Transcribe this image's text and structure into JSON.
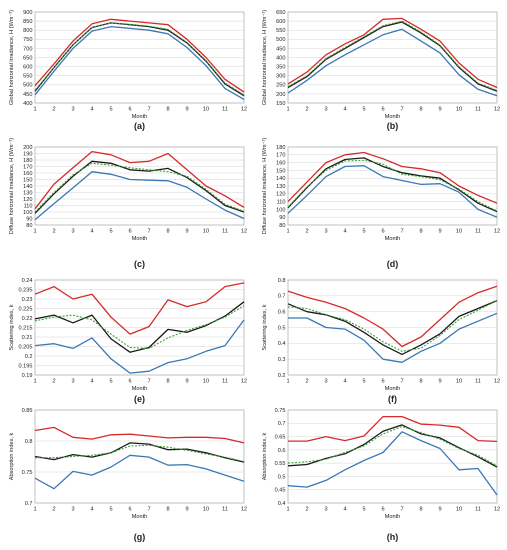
{
  "colors": {
    "red": "#d62a2a",
    "black": "#1a1a1a",
    "blue": "#3a78b5",
    "green": "#3aa03a",
    "grid": "#d6d6d6",
    "frame": "#9a9a9a"
  },
  "chart_data": [
    {
      "type": "line",
      "panel_label": "(a)",
      "xlabel": "Month",
      "ylabel": "Global horizontal irradiance, H (Wm⁻²)",
      "x": [
        1,
        2,
        3,
        4,
        5,
        6,
        7,
        8,
        9,
        10,
        11,
        12
      ],
      "xlim": [
        1,
        12
      ],
      "ylim": [
        400,
        900
      ],
      "yticks": [
        400,
        450,
        500,
        550,
        600,
        650,
        700,
        750,
        800,
        850,
        900
      ],
      "series": [
        {
          "color": "red",
          "dashed": false,
          "values": [
            495,
            615,
            740,
            835,
            860,
            850,
            840,
            830,
            750,
            650,
            530,
            460
          ]
        },
        {
          "color": "black",
          "dashed": false,
          "values": [
            465,
            595,
            720,
            815,
            840,
            830,
            820,
            800,
            730,
            630,
            505,
            440
          ]
        },
        {
          "color": "green",
          "dashed": true,
          "values": [
            470,
            595,
            720,
            815,
            840,
            832,
            822,
            805,
            733,
            633,
            510,
            445
          ]
        },
        {
          "color": "blue",
          "dashed": false,
          "values": [
            445,
            575,
            700,
            795,
            820,
            810,
            800,
            780,
            705,
            605,
            480,
            420
          ]
        }
      ]
    },
    {
      "type": "line",
      "panel_label": "(b)",
      "xlabel": "Month",
      "ylabel": "Global horizontal irradiance, H (Wm⁻²)",
      "x": [
        1,
        2,
        3,
        4,
        5,
        6,
        7,
        8,
        9,
        10,
        11,
        12
      ],
      "xlim": [
        1,
        12
      ],
      "ylim": [
        150,
        650
      ],
      "yticks": [
        150,
        200,
        250,
        300,
        350,
        400,
        450,
        500,
        550,
        600,
        650
      ],
      "series": [
        {
          "color": "red",
          "dashed": false,
          "values": [
            255,
            320,
            415,
            475,
            525,
            610,
            615,
            555,
            490,
            370,
            280,
            235
          ]
        },
        {
          "color": "black",
          "dashed": false,
          "values": [
            235,
            295,
            390,
            450,
            510,
            570,
            595,
            535,
            465,
            345,
            255,
            215
          ]
        },
        {
          "color": "green",
          "dashed": true,
          "values": [
            240,
            300,
            395,
            455,
            515,
            575,
            600,
            540,
            468,
            350,
            260,
            220
          ]
        },
        {
          "color": "blue",
          "dashed": false,
          "values": [
            205,
            275,
            355,
            415,
            470,
            525,
            555,
            490,
            425,
            305,
            225,
            190
          ]
        }
      ]
    },
    {
      "type": "line",
      "panel_label": "(c)",
      "xlabel": "Month",
      "ylabel": "Diffuse horizontal irradiance, H (Wm⁻²)",
      "x": [
        1,
        2,
        3,
        4,
        5,
        6,
        7,
        8,
        9,
        10,
        11,
        12
      ],
      "xlim": [
        1,
        12
      ],
      "ylim": [
        80,
        200
      ],
      "yticks": [
        80,
        90,
        100,
        110,
        120,
        130,
        140,
        150,
        160,
        170,
        180,
        190,
        200
      ],
      "series": [
        {
          "color": "red",
          "dashed": false,
          "values": [
            105,
            143,
            168,
            193,
            188,
            176,
            178,
            190,
            165,
            140,
            125,
            107
          ]
        },
        {
          "color": "black",
          "dashed": false,
          "values": [
            98,
            128,
            155,
            178,
            175,
            165,
            163,
            167,
            153,
            133,
            110,
            100
          ]
        },
        {
          "color": "green",
          "dashed": true,
          "values": [
            100,
            130,
            157,
            175,
            172,
            168,
            165,
            162,
            155,
            135,
            112,
            101
          ]
        },
        {
          "color": "blue",
          "dashed": false,
          "values": [
            88,
            113,
            137,
            162,
            158,
            150,
            149,
            148,
            138,
            120,
            103,
            90
          ]
        }
      ]
    },
    {
      "type": "line",
      "panel_label": "(d)",
      "xlabel": "Month",
      "ylabel": "Diffuse horizontal irradiance, H (Wm⁻²)",
      "x": [
        1,
        2,
        3,
        4,
        5,
        6,
        7,
        8,
        9,
        10,
        11,
        12
      ],
      "xlim": [
        1,
        12
      ],
      "ylim": [
        80,
        180
      ],
      "yticks": [
        80,
        90,
        100,
        110,
        120,
        130,
        140,
        150,
        160,
        170,
        180
      ],
      "series": [
        {
          "color": "red",
          "dashed": false,
          "values": [
            110,
            135,
            160,
            170,
            173,
            165,
            155,
            152,
            147,
            130,
            118,
            108
          ]
        },
        {
          "color": "black",
          "dashed": false,
          "values": [
            102,
            128,
            152,
            164,
            166,
            155,
            147,
            143,
            140,
            125,
            108,
            97
          ]
        },
        {
          "color": "green",
          "dashed": true,
          "values": [
            103,
            129,
            150,
            162,
            163,
            158,
            145,
            142,
            138,
            126,
            110,
            98
          ]
        },
        {
          "color": "blue",
          "dashed": false,
          "values": [
            95,
            118,
            142,
            155,
            156,
            142,
            137,
            132,
            133,
            122,
            100,
            90
          ]
        }
      ]
    },
    {
      "type": "line",
      "panel_label": "(e)",
      "xlabel": "Month",
      "ylabel": "Scattering index, k",
      "x": [
        1,
        2,
        3,
        4,
        5,
        6,
        7,
        8,
        9,
        10,
        11,
        12
      ],
      "xlim": [
        1,
        12
      ],
      "ylim": [
        0.19,
        0.24
      ],
      "yticks": [
        "0.19",
        "0.195",
        "0.2",
        "0.205",
        "0.21",
        "0.215",
        "0.22",
        "0.225",
        "0.23",
        "0.235",
        "0.24"
      ],
      "series": [
        {
          "color": "red",
          "dashed": false,
          "values": [
            0.2325,
            0.2365,
            0.23,
            0.2325,
            0.2205,
            0.2115,
            0.2155,
            0.2295,
            0.226,
            0.2285,
            0.2365,
            0.2385
          ]
        },
        {
          "color": "black",
          "dashed": false,
          "values": [
            0.2195,
            0.2215,
            0.2175,
            0.2215,
            0.209,
            0.202,
            0.2045,
            0.214,
            0.2125,
            0.216,
            0.221,
            0.2285
          ]
        },
        {
          "color": "green",
          "dashed": true,
          "values": [
            0.2185,
            0.2205,
            0.2215,
            0.219,
            0.2115,
            0.2045,
            0.204,
            0.2095,
            0.2135,
            0.2165,
            0.2205,
            0.2265
          ]
        },
        {
          "color": "blue",
          "dashed": false,
          "values": [
            0.2055,
            0.2065,
            0.204,
            0.2095,
            0.1985,
            0.191,
            0.192,
            0.1965,
            0.1985,
            0.2025,
            0.2055,
            0.219
          ]
        }
      ]
    },
    {
      "type": "line",
      "panel_label": "(f)",
      "xlabel": "Month",
      "ylabel": "Scattering index, k",
      "x": [
        1,
        2,
        3,
        4,
        5,
        6,
        7,
        8,
        9,
        10,
        11,
        12
      ],
      "xlim": [
        1,
        12
      ],
      "ylim": [
        0.2,
        0.8
      ],
      "yticks": [
        "0.2",
        "0.3",
        "0.4",
        "0.5",
        "0.6",
        "0.7",
        "0.8"
      ],
      "series": [
        {
          "color": "red",
          "dashed": false,
          "values": [
            0.73,
            0.69,
            0.66,
            0.62,
            0.56,
            0.49,
            0.38,
            0.44,
            0.55,
            0.66,
            0.72,
            0.76
          ]
        },
        {
          "color": "black",
          "dashed": false,
          "values": [
            0.65,
            0.6,
            0.58,
            0.54,
            0.47,
            0.39,
            0.33,
            0.39,
            0.46,
            0.57,
            0.62,
            0.67
          ]
        },
        {
          "color": "green",
          "dashed": true,
          "values": [
            0.63,
            0.62,
            0.58,
            0.55,
            0.49,
            0.41,
            0.35,
            0.37,
            0.45,
            0.55,
            0.61,
            0.67
          ]
        },
        {
          "color": "blue",
          "dashed": false,
          "values": [
            0.56,
            0.56,
            0.5,
            0.49,
            0.42,
            0.3,
            0.28,
            0.35,
            0.4,
            0.49,
            0.54,
            0.59
          ]
        }
      ]
    },
    {
      "type": "line",
      "panel_label": "(g)",
      "xlabel": "Month",
      "ylabel": "Absorption index, k",
      "x": [
        1,
        2,
        3,
        4,
        5,
        6,
        7,
        8,
        9,
        10,
        11,
        12
      ],
      "xlim": [
        1,
        12
      ],
      "ylim": [
        0.7,
        0.85
      ],
      "yticks": [
        "0.7",
        "0.75",
        "0.8",
        "0.85"
      ],
      "series": [
        {
          "color": "red",
          "dashed": false,
          "values": [
            0.817,
            0.822,
            0.806,
            0.803,
            0.81,
            0.811,
            0.808,
            0.805,
            0.806,
            0.806,
            0.804,
            0.797
          ]
        },
        {
          "color": "black",
          "dashed": false,
          "values": [
            0.775,
            0.77,
            0.778,
            0.774,
            0.781,
            0.797,
            0.795,
            0.786,
            0.787,
            0.781,
            0.773,
            0.766
          ]
        },
        {
          "color": "green",
          "dashed": true,
          "values": [
            0.773,
            0.773,
            0.775,
            0.777,
            0.781,
            0.792,
            0.793,
            0.79,
            0.785,
            0.779,
            0.774,
            0.767
          ]
        },
        {
          "color": "blue",
          "dashed": false,
          "values": [
            0.74,
            0.723,
            0.751,
            0.745,
            0.758,
            0.777,
            0.774,
            0.761,
            0.762,
            0.755,
            0.745,
            0.735
          ]
        }
      ]
    },
    {
      "type": "line",
      "panel_label": "(h)",
      "xlabel": "Month",
      "ylabel": "Absorption index, k",
      "x": [
        1,
        2,
        3,
        4,
        5,
        6,
        7,
        8,
        9,
        10,
        11,
        12
      ],
      "xlim": [
        1,
        12
      ],
      "ylim": [
        0.4,
        0.75
      ],
      "yticks": [
        "0.4",
        "0.45",
        "0.5",
        "0.55",
        "0.6",
        "0.65",
        "0.7",
        "0.75"
      ],
      "series": [
        {
          "color": "red",
          "dashed": false,
          "values": [
            0.633,
            0.633,
            0.65,
            0.635,
            0.652,
            0.725,
            0.725,
            0.697,
            0.693,
            0.685,
            0.635,
            0.632
          ]
        },
        {
          "color": "black",
          "dashed": false,
          "values": [
            0.54,
            0.545,
            0.568,
            0.585,
            0.62,
            0.67,
            0.694,
            0.66,
            0.645,
            0.608,
            0.574,
            0.535
          ]
        },
        {
          "color": "green",
          "dashed": true,
          "values": [
            0.55,
            0.555,
            0.565,
            0.59,
            0.615,
            0.66,
            0.688,
            0.665,
            0.64,
            0.605,
            0.58,
            0.54
          ]
        },
        {
          "color": "blue",
          "dashed": false,
          "values": [
            0.465,
            0.46,
            0.485,
            0.525,
            0.56,
            0.59,
            0.668,
            0.635,
            0.605,
            0.525,
            0.53,
            0.43
          ]
        }
      ]
    }
  ]
}
